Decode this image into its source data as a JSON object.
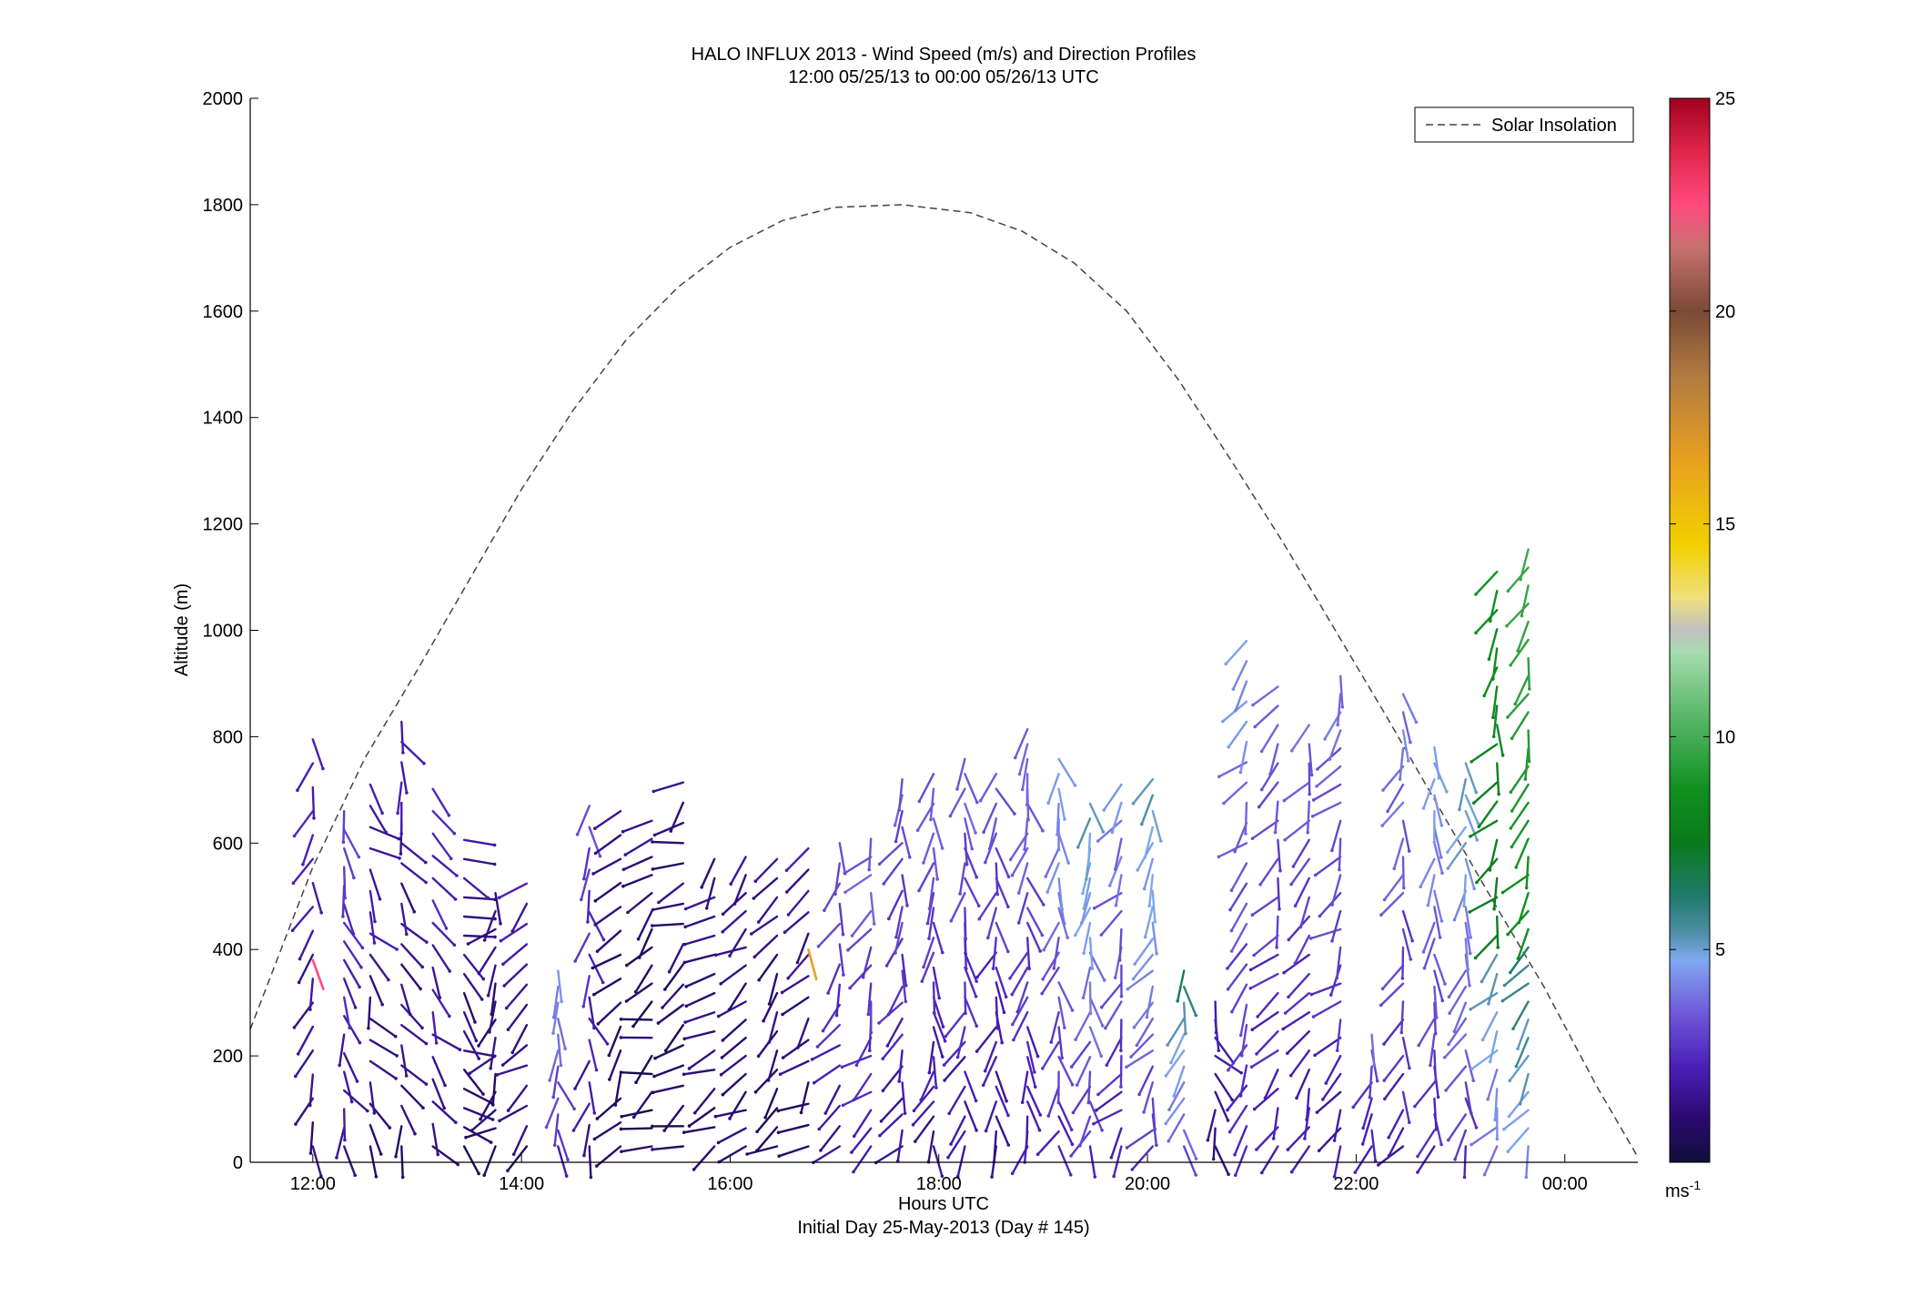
{
  "chart_data": {
    "type": "scatter",
    "title": "HALO INFLUX 2013 - Wind Speed (m/s) and Direction Profiles",
    "subtitle": "12:00 05/25/13 to 00:00 05/26/13  UTC",
    "xlabel": "Hours UTC",
    "xlabel2": "Initial Day 25-May-2013 (Day # 145)",
    "ylabel": "Altitude (m)",
    "xlim_hours": [
      11.4,
      24.7
    ],
    "ylim": [
      0,
      2000
    ],
    "x_ticks": [
      12,
      14,
      16,
      18,
      20,
      22,
      24
    ],
    "x_tick_labels": [
      "12:00",
      "14:00",
      "16:00",
      "18:00",
      "20:00",
      "22:00",
      "00:00"
    ],
    "y_ticks": [
      0,
      200,
      400,
      600,
      800,
      1000,
      1200,
      1400,
      1600,
      1800,
      2000
    ],
    "y_tick_labels": [
      "0",
      "200",
      "400",
      "600",
      "800",
      "1000",
      "1200",
      "1400",
      "1600",
      "1800",
      "2000"
    ],
    "legend": {
      "entries": [
        "Solar Insolation"
      ],
      "placement": "top-right"
    },
    "colorbar": {
      "range": [
        0,
        25
      ],
      "ticks": [
        5,
        10,
        15,
        20,
        25
      ],
      "tick_labels": [
        "5",
        "10",
        "15",
        "20",
        "25"
      ],
      "unit": "ms",
      "unit_exp": "-1"
    },
    "solar_insolation": {
      "style": "dashed",
      "x": [
        11.4,
        12.0,
        12.5,
        13.0,
        13.5,
        14.0,
        14.5,
        15.0,
        15.5,
        16.0,
        16.5,
        17.0,
        17.65,
        18.3,
        18.8,
        19.3,
        19.8,
        20.3,
        20.8,
        21.3,
        21.8,
        22.3,
        22.8,
        23.3,
        23.8,
        24.3,
        24.7
      ],
      "y": [
        250,
        555,
        760,
        925,
        1095,
        1265,
        1415,
        1545,
        1645,
        1720,
        1770,
        1795,
        1800,
        1785,
        1750,
        1690,
        1600,
        1470,
        1320,
        1165,
        1000,
        835,
        665,
        495,
        330,
        145,
        10
      ]
    },
    "profiles": [
      {
        "hour": 12.0,
        "top": 810,
        "flow_deg": 185,
        "speed": 2.0,
        "step": 45,
        "highlight": {
          "alt": 380,
          "speed": 22.5,
          "flow_deg": 160
        }
      },
      {
        "hour": 12.3,
        "top": 690,
        "flow_deg": 150,
        "speed": 2.6,
        "step": 35
      },
      {
        "hour": 12.55,
        "top": 720,
        "flow_deg": 140,
        "speed": 1.8,
        "step": 40
      },
      {
        "hour": 12.85,
        "top": 860,
        "flow_deg": 150,
        "speed": 1.7,
        "step": 38
      },
      {
        "hour": 13.15,
        "top": 740,
        "flow_deg": 130,
        "speed": 2.2,
        "step": 42
      },
      {
        "hour": 13.45,
        "top": 620,
        "flow_deg": 120,
        "speed": 1.5,
        "step": 36
      },
      {
        "hour": 13.75,
        "top": 520,
        "flow_deg": 205,
        "speed": 1.4,
        "step": 34
      },
      {
        "hour": 14.05,
        "top": 550,
        "flow_deg": 210,
        "speed": 1.6,
        "step": 38
      },
      {
        "hour": 14.35,
        "top": 370,
        "flow_deg": 160,
        "speed": 3.8,
        "step": 30
      },
      {
        "hour": 14.65,
        "top": 700,
        "flow_deg": 170,
        "speed": 2.7,
        "step": 40
      },
      {
        "hour": 14.95,
        "top": 680,
        "flow_deg": 210,
        "speed": 1.2,
        "step": 45
      },
      {
        "hour": 15.25,
        "top": 660,
        "flow_deg": 230,
        "speed": 1.0,
        "step": 34
      },
      {
        "hour": 15.55,
        "top": 730,
        "flow_deg": 235,
        "speed": 1.2,
        "step": 38
      },
      {
        "hour": 15.85,
        "top": 600,
        "flow_deg": 225,
        "speed": 1.3,
        "step": 36
      },
      {
        "hour": 16.15,
        "top": 600,
        "flow_deg": 220,
        "speed": 1.4,
        "step": 34
      },
      {
        "hour": 16.45,
        "top": 590,
        "flow_deg": 215,
        "speed": 1.3,
        "step": 36
      },
      {
        "hour": 16.75,
        "top": 600,
        "flow_deg": 210,
        "speed": 1.5,
        "step": 40,
        "highlight": {
          "alt": 400,
          "speed": 16.5,
          "flow_deg": 165
        }
      },
      {
        "hour": 17.05,
        "top": 600,
        "flow_deg": 200,
        "speed": 2.8,
        "step": 38
      },
      {
        "hour": 17.35,
        "top": 640,
        "flow_deg": 205,
        "speed": 3.2,
        "step": 34
      },
      {
        "hour": 17.65,
        "top": 730,
        "flow_deg": 190,
        "speed": 2.9,
        "step": 30
      },
      {
        "hour": 17.95,
        "top": 730,
        "flow_deg": 180,
        "speed": 2.9,
        "step": 28
      },
      {
        "hour": 18.25,
        "top": 770,
        "flow_deg": 180,
        "speed": 3.0,
        "step": 28
      },
      {
        "hour": 18.55,
        "top": 730,
        "flow_deg": 178,
        "speed": 2.8,
        "step": 28
      },
      {
        "hour": 18.85,
        "top": 840,
        "flow_deg": 178,
        "speed": 3.3,
        "step": 28
      },
      {
        "hour": 19.15,
        "top": 780,
        "flow_deg": 175,
        "speed": 4.0,
        "step": 28
      },
      {
        "hour": 19.45,
        "top": 700,
        "flow_deg": 175,
        "speed": 4.5,
        "step": 28
      },
      {
        "hour": 19.75,
        "top": 730,
        "flow_deg": 205,
        "speed": 3.6,
        "step": 34
      },
      {
        "hour": 20.05,
        "top": 740,
        "flow_deg": 195,
        "speed": 4.6,
        "step": 30
      },
      {
        "hour": 20.35,
        "top": 360,
        "flow_deg": 175,
        "speed": 5.2,
        "step": 30
      },
      {
        "hour": 20.65,
        "top": 330,
        "flow_deg": 150,
        "speed": 2.0,
        "step": 34
      },
      {
        "hour": 20.95,
        "top": 990,
        "flow_deg": 205,
        "speed": 3.8,
        "step": 38
      },
      {
        "hour": 21.25,
        "top": 900,
        "flow_deg": 205,
        "speed": 3.2,
        "step": 36
      },
      {
        "hour": 21.55,
        "top": 850,
        "flow_deg": 200,
        "speed": 3.0,
        "step": 36
      },
      {
        "hour": 21.85,
        "top": 920,
        "flow_deg": 210,
        "speed": 3.3,
        "step": 34
      },
      {
        "hour": 22.15,
        "top": 260,
        "flow_deg": 190,
        "speed": 3.0,
        "step": 30
      },
      {
        "hour": 22.45,
        "top": 910,
        "flow_deg": 185,
        "speed": 3.5,
        "step": 34
      },
      {
        "hour": 22.75,
        "top": 800,
        "flow_deg": 185,
        "speed": 4.0,
        "step": 30
      },
      {
        "hour": 23.05,
        "top": 760,
        "flow_deg": 180,
        "speed": 4.5,
        "step": 30
      },
      {
        "hour": 23.35,
        "top": 1130,
        "flow_deg": 200,
        "speed": 6.8,
        "step": 36
      },
      {
        "hour": 23.65,
        "top": 1170,
        "flow_deg": 198,
        "speed": 7.8,
        "step": 34
      }
    ]
  }
}
